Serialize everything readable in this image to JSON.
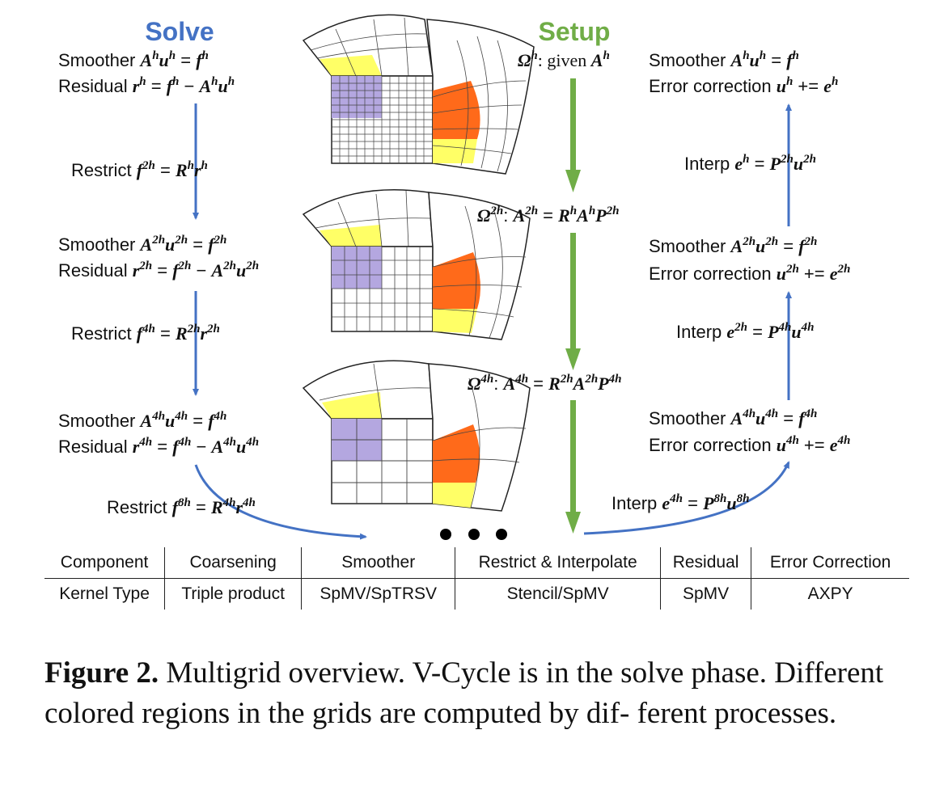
{
  "headings": {
    "solve": "Solve",
    "setup": "Setup"
  },
  "colors": {
    "solve": "#4472c4",
    "setup": "#70ad47",
    "yellow": "#ffff66",
    "orange": "#ff6a1a",
    "purple": "#b4a7e0"
  },
  "table": {
    "headers": [
      "Component",
      "Coarsening",
      "Smoother",
      "Restrict & Interpolate",
      "Residual",
      "Error Correction"
    ],
    "row": [
      "Kernel Type",
      "Triple product",
      "SpMV/SpTRSV",
      "Stencil/SpMV",
      "SpMV",
      "AXPY"
    ]
  },
  "caption": {
    "label": "Figure 2.",
    "text": " Multigrid overview. V-Cycle is in the solve phase. Different colored regions in the grids are computed by dif- ferent processes."
  }
}
